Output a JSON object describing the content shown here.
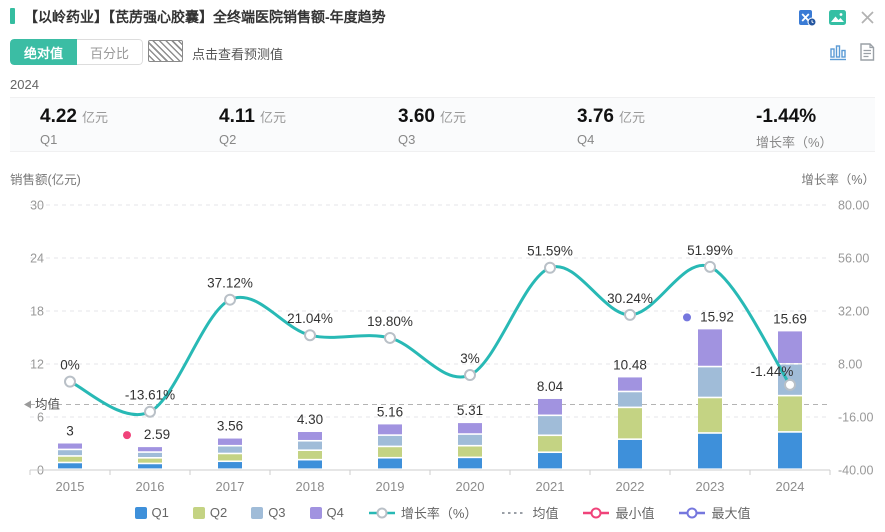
{
  "header": {
    "title": "【以岭药业】【芪苈强心胶囊】全终端医院销售额-年度趋势",
    "icons": [
      "excel-export-icon",
      "image-export-icon",
      "close-icon"
    ]
  },
  "toolbar": {
    "absolute_label": "绝对值",
    "percent_label": "百分比",
    "forecast_label": "点击查看预测值",
    "view_icons": [
      "bar-chart-view-icon",
      "table-view-icon"
    ]
  },
  "year_label": "2024",
  "summary_cards": [
    {
      "value": "4.22",
      "unit": "亿元",
      "label": "Q1"
    },
    {
      "value": "4.11",
      "unit": "亿元",
      "label": "Q2"
    },
    {
      "value": "3.60",
      "unit": "亿元",
      "label": "Q3"
    },
    {
      "value": "3.76",
      "unit": "亿元",
      "label": "Q4"
    },
    {
      "value": "-1.44%",
      "unit": "",
      "label": "增长率（%）"
    }
  ],
  "chart_data": {
    "type": "bar+line (stacked quarterly bars with growth-rate line)",
    "categories": [
      "2015",
      "2016",
      "2017",
      "2018",
      "2019",
      "2020",
      "2021",
      "2022",
      "2023",
      "2024"
    ],
    "series": [
      {
        "name": "Q1",
        "values": [
          0.76,
          0.65,
          0.9,
          1.08,
          1.3,
          1.34,
          1.92,
          3.4,
          4.1,
          4.22
        ]
      },
      {
        "name": "Q2",
        "values": [
          0.74,
          0.64,
          0.88,
          1.07,
          1.28,
          1.32,
          1.92,
          3.6,
          4.02,
          4.11
        ]
      },
      {
        "name": "Q3",
        "values": [
          0.74,
          0.65,
          0.88,
          1.07,
          1.28,
          1.32,
          2.26,
          1.8,
          3.5,
          3.6
        ]
      },
      {
        "name": "Q4",
        "values": [
          0.76,
          0.65,
          0.9,
          1.08,
          1.3,
          1.33,
          1.94,
          1.68,
          4.3,
          3.76
        ]
      }
    ],
    "totals": [
      3,
      2.59,
      3.56,
      4.3,
      5.16,
      5.31,
      8.04,
      10.48,
      15.92,
      15.69
    ],
    "total_labels": [
      "3",
      "2.59",
      "3.56",
      "4.30",
      "5.16",
      "5.31",
      "8.04",
      "10.48",
      "15.92",
      "15.69"
    ],
    "growth": [
      0,
      -13.61,
      37.12,
      21.04,
      19.8,
      3,
      51.59,
      30.24,
      51.99,
      -1.44
    ],
    "growth_labels": [
      "0%",
      "-13.61%",
      "37.12%",
      "21.04%",
      "19.80%",
      "3%",
      "51.59%",
      "30.24%",
      "51.99%",
      "-1.44%"
    ],
    "mean_value": 7.41,
    "mean_label": "均值",
    "min_index": 1,
    "max_index": 8,
    "left_axis": {
      "title": "销售额(亿元)",
      "ticks_top_to_bottom": [
        "30",
        "24",
        "18",
        "12",
        "6",
        "0"
      ],
      "range": [
        0,
        30
      ]
    },
    "right_axis": {
      "title": "增长率（%）",
      "ticks_top_to_bottom": [
        "80.00",
        "56.00",
        "32.00",
        "8.00",
        "-16.00",
        "-40.00"
      ],
      "range": [
        -40,
        80
      ]
    },
    "legend": [
      "Q1",
      "Q2",
      "Q3",
      "Q4",
      "增长率（%）",
      "均值",
      "最小值",
      "最大值"
    ],
    "grid": true,
    "colors": {
      "q1": "#3e90da",
      "q2": "#c4d383",
      "q3": "#a0bcd8",
      "q4": "#a193e0",
      "growth_line": "#28b9b5",
      "marker_ring": "#b9c0c7",
      "min_marker": "#f0437a",
      "max_marker": "#7577de",
      "mean_line": "#b3b3b3",
      "accent": "#35bda0",
      "axis_text": "#999999",
      "label_text": "#333333"
    }
  }
}
